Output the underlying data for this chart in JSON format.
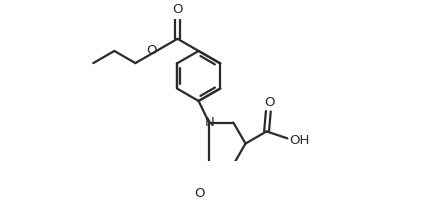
{
  "background_color": "#ffffff",
  "line_color": "#2b2b2b",
  "line_width": 1.6,
  "fig_width": 4.25,
  "fig_height": 2.05,
  "dpi": 100,
  "xlim": [
    0,
    8.5
  ],
  "ylim": [
    0,
    4.1
  ]
}
